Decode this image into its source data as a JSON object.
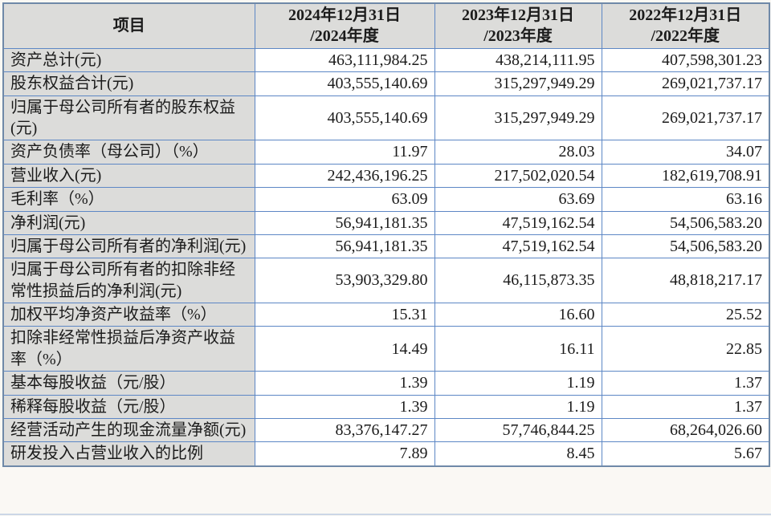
{
  "page": {
    "background_color": "#faf8f4",
    "table_border_color": "#5d87c5",
    "header_bg_color": "#dcdcda",
    "label_bg_color": "#dcdcda"
  },
  "table": {
    "header": {
      "item_label": "项目",
      "periods": [
        {
          "line1": "2024年12月31日",
          "line2": "/2024年度"
        },
        {
          "line1": "2023年12月31日",
          "line2": "/2023年度"
        },
        {
          "line1": "2022年12月31日",
          "line2": "/2022年度"
        }
      ]
    },
    "rows": [
      {
        "label": "资产总计(元)",
        "values": [
          "463,111,984.25",
          "438,214,111.95",
          "407,598,301.23"
        ]
      },
      {
        "label": "股东权益合计(元)",
        "values": [
          "403,555,140.69",
          "315,297,949.29",
          "269,021,737.17"
        ]
      },
      {
        "label": "归属于母公司所有者的股东权益(元)",
        "values": [
          "403,555,140.69",
          "315,297,949.29",
          "269,021,737.17"
        ]
      },
      {
        "label": "资产负债率（母公司）（%）",
        "values": [
          "11.97",
          "28.03",
          "34.07"
        ]
      },
      {
        "label": "营业收入(元)",
        "values": [
          "242,436,196.25",
          "217,502,020.54",
          "182,619,708.91"
        ]
      },
      {
        "label": "毛利率（%）",
        "values": [
          "63.09",
          "63.69",
          "63.16"
        ]
      },
      {
        "label": "净利润(元)",
        "values": [
          "56,941,181.35",
          "47,519,162.54",
          "54,506,583.20"
        ]
      },
      {
        "label": "归属于母公司所有者的净利润(元)",
        "values": [
          "56,941,181.35",
          "47,519,162.54",
          "54,506,583.20"
        ]
      },
      {
        "label": "归属于母公司所有者的扣除非经常性损益后的净利润(元)",
        "values": [
          "53,903,329.80",
          "46,115,873.35",
          "48,818,217.17"
        ]
      },
      {
        "label": "加权平均净资产收益率（%）",
        "values": [
          "15.31",
          "16.60",
          "25.52"
        ]
      },
      {
        "label": "扣除非经常性损益后净资产收益率（%）",
        "values": [
          "14.49",
          "16.11",
          "22.85"
        ]
      },
      {
        "label": "基本每股收益（元/股）",
        "values": [
          "1.39",
          "1.19",
          "1.37"
        ]
      },
      {
        "label": "稀释每股收益（元/股）",
        "values": [
          "1.39",
          "1.19",
          "1.37"
        ]
      },
      {
        "label": "经营活动产生的现金流量净额(元)",
        "values": [
          "83,376,147.27",
          "57,746,844.25",
          "68,264,026.60"
        ]
      },
      {
        "label": "研发投入占营业收入的比例",
        "values": [
          "7.89",
          "8.45",
          "5.67"
        ]
      }
    ]
  }
}
